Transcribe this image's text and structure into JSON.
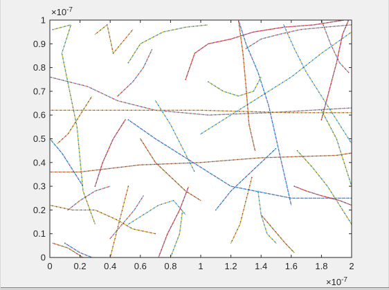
{
  "chart_data": {
    "type": "line",
    "title": "",
    "xlabel": "",
    "ylabel": "",
    "xlim": [
      0,
      2
    ],
    "ylim": [
      0,
      1
    ],
    "x_multiplier": "×10",
    "x_exponent": "-7",
    "y_multiplier": "×10",
    "y_exponent": "-7",
    "xticks": [
      "0",
      "0.2",
      "0.4",
      "0.6",
      "0.8",
      "1",
      "1.2",
      "1.4",
      "1.6",
      "1.8",
      "2"
    ],
    "yticks": [
      "0",
      "0.1",
      "0.2",
      "0.3",
      "0.4",
      "0.5",
      "0.6",
      "0.7",
      "0.8",
      "0.9",
      "1"
    ],
    "grid": false,
    "line_style": "dotted",
    "colors": [
      "#0072bd",
      "#d95319",
      "#edb120",
      "#7e2f8e",
      "#77ac30",
      "#4dbeee",
      "#a2142f"
    ],
    "series": [
      {
        "path": [
          [
            0.02,
            0.96
          ],
          [
            0.14,
            0.98
          ],
          [
            0.08,
            0.86
          ],
          [
            0.18,
            0.55
          ],
          [
            0.22,
            0.28
          ],
          [
            0.3,
            0.14
          ]
        ]
      },
      {
        "path": [
          [
            0.0,
            0.76
          ],
          [
            0.25,
            0.72
          ],
          [
            0.45,
            0.66
          ],
          [
            0.7,
            0.62
          ],
          [
            1.05,
            0.6
          ],
          [
            1.45,
            0.61
          ],
          [
            2.0,
            0.63
          ]
        ]
      },
      {
        "path": [
          [
            0.0,
            0.62
          ],
          [
            0.4,
            0.62
          ],
          [
            1.0,
            0.62
          ],
          [
            1.6,
            0.61
          ],
          [
            2.0,
            0.61
          ]
        ]
      },
      {
        "path": [
          [
            0.52,
            0.58
          ],
          [
            0.7,
            0.5
          ],
          [
            0.95,
            0.4
          ],
          [
            1.2,
            0.3
          ],
          [
            1.6,
            0.25
          ],
          [
            2.0,
            0.25
          ]
        ]
      },
      {
        "path": [
          [
            0.0,
            0.36
          ],
          [
            0.2,
            0.36
          ],
          [
            0.6,
            0.39
          ],
          [
            1.0,
            0.4
          ],
          [
            1.4,
            0.42
          ],
          [
            1.9,
            0.43
          ],
          [
            2.0,
            0.44
          ]
        ]
      },
      {
        "path": [
          [
            1.0,
            0.52
          ],
          [
            1.2,
            0.6
          ],
          [
            1.4,
            0.68
          ],
          [
            1.6,
            0.76
          ],
          [
            1.8,
            0.86
          ],
          [
            2.0,
            0.95
          ]
        ]
      },
      {
        "path": [
          [
            0.9,
            0.75
          ],
          [
            0.96,
            0.86
          ],
          [
            1.05,
            0.9
          ],
          [
            1.2,
            0.92
          ],
          [
            1.35,
            0.95
          ],
          [
            1.55,
            0.97
          ],
          [
            1.75,
            0.98
          ],
          [
            1.95,
            1.0
          ]
        ]
      },
      {
        "path": [
          [
            0.52,
            0.82
          ],
          [
            0.6,
            0.9
          ],
          [
            0.75,
            0.95
          ],
          [
            0.9,
            0.97
          ],
          [
            1.05,
            0.98
          ]
        ]
      },
      {
        "path": [
          [
            0.45,
            0.68
          ],
          [
            0.55,
            0.74
          ],
          [
            0.62,
            0.8
          ],
          [
            0.68,
            0.88
          ]
        ]
      },
      {
        "path": [
          [
            0.3,
            0.94
          ],
          [
            0.38,
            0.98
          ],
          [
            0.42,
            0.86
          ],
          [
            0.55,
            0.96
          ]
        ]
      },
      {
        "path": [
          [
            1.25,
            1.0
          ],
          [
            1.3,
            0.9
          ],
          [
            1.38,
            0.78
          ],
          [
            1.45,
            0.64
          ],
          [
            1.5,
            0.5
          ],
          [
            1.55,
            0.36
          ],
          [
            1.6,
            0.22
          ]
        ]
      },
      {
        "path": [
          [
            1.25,
            1.0
          ],
          [
            1.28,
            0.86
          ],
          [
            1.3,
            0.72
          ],
          [
            1.32,
            0.56
          ],
          [
            1.36,
            0.45
          ]
        ]
      },
      {
        "path": [
          [
            1.55,
            0.98
          ],
          [
            1.62,
            0.88
          ],
          [
            1.7,
            0.78
          ],
          [
            1.8,
            0.68
          ],
          [
            1.9,
            0.58
          ],
          [
            2.0,
            0.48
          ]
        ]
      },
      {
        "path": [
          [
            1.8,
            0.58
          ],
          [
            1.85,
            0.7
          ],
          [
            1.9,
            0.82
          ],
          [
            1.94,
            0.94
          ],
          [
            1.98,
            1.0
          ]
        ]
      },
      {
        "path": [
          [
            1.8,
            0.62
          ],
          [
            1.9,
            0.5
          ],
          [
            1.95,
            0.4
          ],
          [
            2.0,
            0.3
          ]
        ]
      },
      {
        "path": [
          [
            1.3,
            0.88
          ],
          [
            1.4,
            0.92
          ],
          [
            1.52,
            0.94
          ],
          [
            1.66,
            0.96
          ],
          [
            1.82,
            0.97
          ],
          [
            2.0,
            0.98
          ]
        ]
      },
      {
        "path": [
          [
            0.0,
            0.22
          ],
          [
            0.15,
            0.2
          ],
          [
            0.3,
            0.2
          ],
          [
            0.44,
            0.16
          ],
          [
            0.55,
            0.12
          ],
          [
            0.7,
            0.1
          ]
        ]
      },
      {
        "path": [
          [
            0.1,
            0.06
          ],
          [
            0.2,
            0.02
          ],
          [
            0.28,
            0.0
          ]
        ]
      },
      {
        "path": [
          [
            0.02,
            0.06
          ],
          [
            0.12,
            0.04
          ],
          [
            0.22,
            0.0
          ]
        ]
      },
      {
        "path": [
          [
            0.52,
            0.14
          ],
          [
            0.62,
            0.18
          ],
          [
            0.72,
            0.22
          ],
          [
            0.82,
            0.24
          ],
          [
            0.9,
            0.18
          ]
        ]
      },
      {
        "path": [
          [
            0.72,
            0.0
          ],
          [
            0.78,
            0.1
          ],
          [
            0.86,
            0.2
          ],
          [
            0.92,
            0.3
          ]
        ]
      },
      {
        "path": [
          [
            0.8,
            0.0
          ],
          [
            0.86,
            0.1
          ],
          [
            0.88,
            0.2
          ]
        ]
      },
      {
        "path": [
          [
            0.4,
            0.08
          ],
          [
            0.48,
            0.14
          ],
          [
            0.56,
            0.2
          ],
          [
            0.62,
            0.26
          ]
        ]
      },
      {
        "path": [
          [
            0.4,
            0.0
          ],
          [
            0.44,
            0.1
          ],
          [
            0.48,
            0.2
          ],
          [
            0.52,
            0.3
          ]
        ]
      },
      {
        "path": [
          [
            1.1,
            0.2
          ],
          [
            1.2,
            0.28
          ],
          [
            1.3,
            0.34
          ],
          [
            1.4,
            0.4
          ],
          [
            1.5,
            0.46
          ]
        ]
      },
      {
        "path": [
          [
            1.4,
            0.18
          ],
          [
            1.48,
            0.12
          ],
          [
            1.56,
            0.06
          ],
          [
            1.62,
            0.02
          ]
        ]
      },
      {
        "path": [
          [
            1.38,
            0.28
          ],
          [
            1.4,
            0.18
          ],
          [
            1.44,
            0.1
          ],
          [
            1.5,
            0.06
          ]
        ]
      },
      {
        "path": [
          [
            1.62,
            0.3
          ],
          [
            1.7,
            0.28
          ],
          [
            1.8,
            0.26
          ],
          [
            1.92,
            0.24
          ],
          [
            2.0,
            0.22
          ]
        ]
      },
      {
        "path": [
          [
            1.64,
            0.45
          ],
          [
            1.74,
            0.38
          ],
          [
            1.84,
            0.3
          ],
          [
            1.92,
            0.22
          ],
          [
            2.0,
            0.14
          ]
        ]
      },
      {
        "path": [
          [
            0.12,
            0.2
          ],
          [
            0.2,
            0.24
          ],
          [
            0.3,
            0.28
          ],
          [
            0.4,
            0.3
          ]
        ]
      },
      {
        "path": [
          [
            0.05,
            0.48
          ],
          [
            0.12,
            0.52
          ],
          [
            0.2,
            0.6
          ],
          [
            0.28,
            0.68
          ]
        ]
      },
      {
        "path": [
          [
            0.0,
            0.5
          ],
          [
            0.08,
            0.44
          ],
          [
            0.16,
            0.36
          ],
          [
            0.22,
            0.3
          ]
        ]
      },
      {
        "path": [
          [
            0.6,
            0.5
          ],
          [
            0.7,
            0.4
          ],
          [
            0.8,
            0.34
          ],
          [
            0.9,
            0.28
          ],
          [
            1.0,
            0.24
          ]
        ]
      },
      {
        "path": [
          [
            0.7,
            0.66
          ],
          [
            0.8,
            0.56
          ],
          [
            0.88,
            0.46
          ],
          [
            0.96,
            0.36
          ]
        ]
      },
      {
        "path": [
          [
            0.3,
            0.3
          ],
          [
            0.35,
            0.4
          ],
          [
            0.42,
            0.5
          ],
          [
            0.5,
            0.58
          ]
        ]
      },
      {
        "path": [
          [
            1.05,
            0.74
          ],
          [
            1.15,
            0.7
          ],
          [
            1.25,
            0.68
          ],
          [
            1.35,
            0.7
          ],
          [
            1.4,
            0.76
          ]
        ]
      },
      {
        "path": [
          [
            1.8,
            1.0
          ],
          [
            1.86,
            0.9
          ],
          [
            1.92,
            0.82
          ],
          [
            1.98,
            0.78
          ]
        ]
      },
      {
        "path": [
          [
            1.2,
            0.06
          ],
          [
            1.26,
            0.14
          ],
          [
            1.3,
            0.24
          ],
          [
            1.34,
            0.34
          ]
        ]
      }
    ]
  }
}
